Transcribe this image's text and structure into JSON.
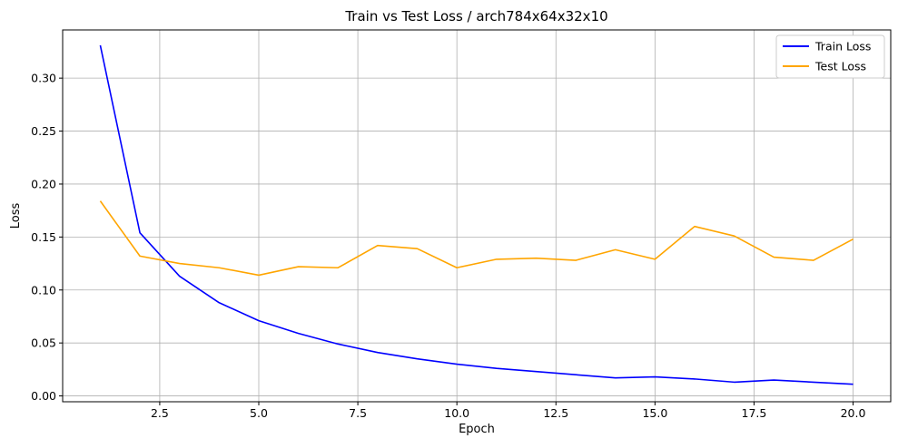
{
  "chart_data": {
    "type": "line",
    "title": "Train vs Test Loss / arch784x64x32x10",
    "xlabel": "Epoch",
    "ylabel": "Loss",
    "xlim": [
      0.05,
      20.95
    ],
    "ylim": [
      -0.0055,
      0.3455
    ],
    "xticks": [
      2.5,
      5.0,
      7.5,
      10.0,
      12.5,
      15.0,
      17.5,
      20.0
    ],
    "xtick_labels": [
      "2.5",
      "5.0",
      "7.5",
      "10.0",
      "12.5",
      "15.0",
      "17.5",
      "20.0"
    ],
    "yticks": [
      0.0,
      0.05,
      0.1,
      0.15,
      0.2,
      0.25,
      0.3
    ],
    "ytick_labels": [
      "0.00",
      "0.05",
      "0.10",
      "0.15",
      "0.20",
      "0.25",
      "0.30"
    ],
    "grid": true,
    "legend_position": "top-right",
    "x": [
      1,
      2,
      3,
      4,
      5,
      6,
      7,
      8,
      9,
      10,
      11,
      12,
      13,
      14,
      15,
      16,
      17,
      18,
      19,
      20
    ],
    "series": [
      {
        "name": "Train Loss",
        "color": "#0000ff",
        "values": [
          0.331,
          0.154,
          0.113,
          0.088,
          0.071,
          0.059,
          0.049,
          0.041,
          0.035,
          0.03,
          0.026,
          0.023,
          0.02,
          0.017,
          0.018,
          0.016,
          0.013,
          0.015,
          0.013,
          0.011
        ]
      },
      {
        "name": "Test Loss",
        "color": "#ffa500",
        "values": [
          0.184,
          0.132,
          0.125,
          0.121,
          0.114,
          0.122,
          0.121,
          0.142,
          0.139,
          0.121,
          0.129,
          0.13,
          0.128,
          0.138,
          0.129,
          0.16,
          0.151,
          0.131,
          0.128,
          0.148
        ]
      }
    ]
  }
}
